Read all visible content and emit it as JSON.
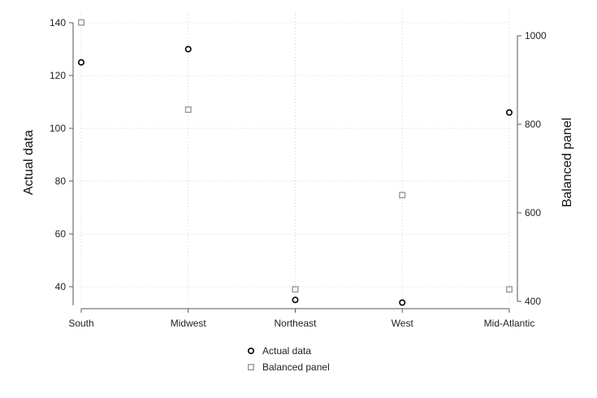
{
  "chart_data": {
    "type": "scatter",
    "categories": [
      "South",
      "Midwest",
      "Northeast",
      "West",
      "Mid-Atlantic"
    ],
    "series": [
      {
        "name": "Actual data",
        "axis": "left",
        "marker": "hollow-circle",
        "color": "#000000",
        "values": [
          125,
          130,
          35,
          34,
          106
        ]
      },
      {
        "name": "Balanced panel",
        "axis": "right",
        "marker": "hollow-square",
        "color": "#999999",
        "values": [
          1030,
          833,
          427,
          640,
          427
        ]
      }
    ],
    "ylabel_left": "Actual data",
    "ylabel_right": "Balanced panel",
    "ylim_left": [
      33,
      140
    ],
    "yticks_left": [
      40,
      60,
      80,
      100,
      120,
      140
    ],
    "ylim_right": [
      400,
      1000
    ],
    "yticks_right": [
      400,
      600,
      800,
      1000
    ],
    "grid": true,
    "legend_position": "bottom"
  }
}
